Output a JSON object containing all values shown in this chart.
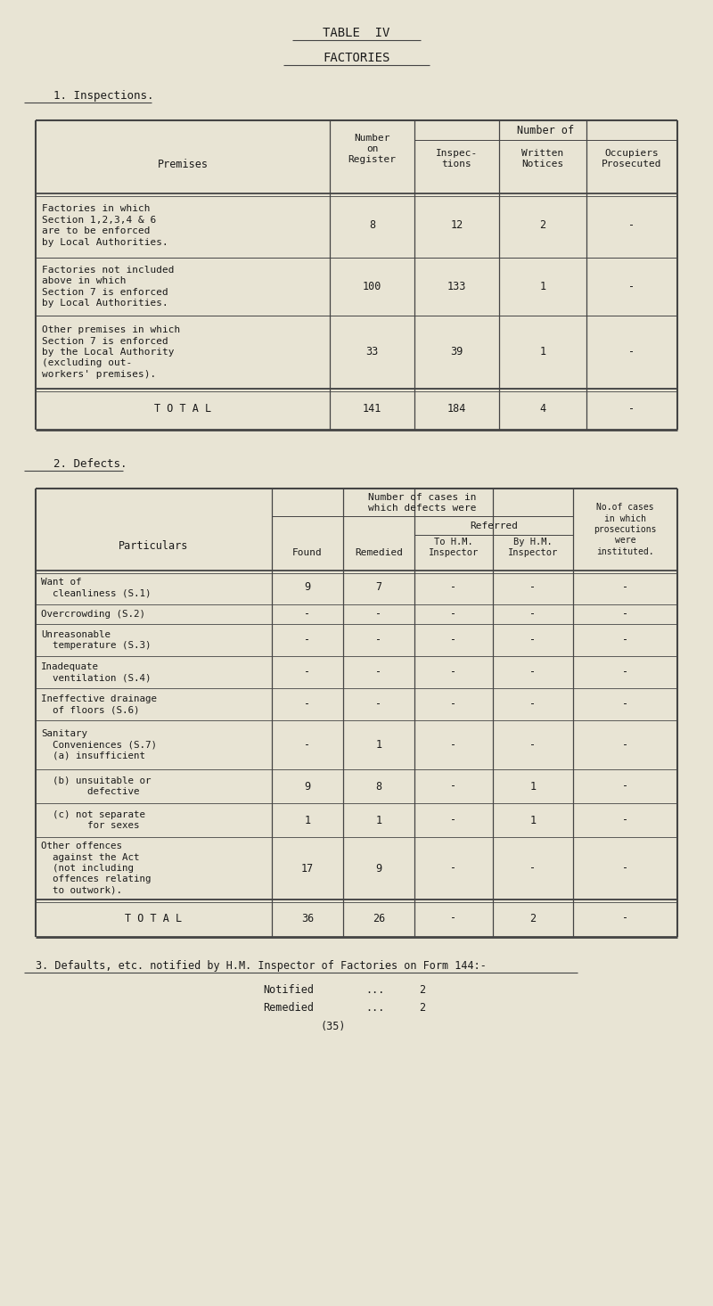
{
  "bg_color": "#e8e4d4",
  "text_color": "#1a1a1a",
  "title1": "TABLE  IV",
  "title2": "FACTORIES",
  "section1_label": "1. Inspections.",
  "section2_label": "2. Defects.",
  "section3_label": "3. Defaults, etc. notified by H.M. Inspector of Factories on Form 144:-",
  "table1_rows": [
    [
      "Factories in which\nSection 1,2,3,4 & 6\nare to be enforced\nby Local Authorities.",
      "8",
      "12",
      "2",
      "-"
    ],
    [
      "Factories not included\nabove in which\nSection 7 is enforced\nby Local Authorities.",
      "100",
      "133",
      "1",
      "-"
    ],
    [
      "Other premises in which\nSection 7 is enforced\nby the Local Authority\n(excluding out-\nworkers' premises).",
      "33",
      "39",
      "1",
      "-"
    ],
    [
      "T O T A L",
      "141",
      "184",
      "4",
      "-"
    ]
  ],
  "table2_rows": [
    [
      "Want of\n  cleanliness (S.1)",
      "9",
      "7",
      "-",
      "-",
      "-"
    ],
    [
      "Overcrowding (S.2)",
      "-",
      "-",
      "-",
      "-",
      "-"
    ],
    [
      "Unreasonable\n  temperature (S.3)",
      "-",
      "-",
      "-",
      "-",
      "-"
    ],
    [
      "Inadequate\n  ventilation (S.4)",
      "-",
      "-",
      "-",
      "-",
      "-"
    ],
    [
      "Ineffective drainage\n  of floors (S.6)",
      "-",
      "-",
      "-",
      "-",
      "-"
    ],
    [
      "Sanitary\n  Conveniences (S.7)\n  (a) insufficient",
      "-",
      "1",
      "-",
      "-",
      "-"
    ],
    [
      "  (b) unsuitable or\n        defective",
      "9",
      "8",
      "-",
      "1",
      "-"
    ],
    [
      "  (c) not separate\n        for sexes",
      "1",
      "1",
      "-",
      "1",
      "-"
    ],
    [
      "Other offences\n  against the Act\n  (not including\n  offences relating\n  to outwork).",
      "17",
      "9",
      "-",
      "-",
      "-"
    ],
    [
      "T O T A L",
      "36",
      "26",
      "-",
      "2",
      "-"
    ]
  ]
}
